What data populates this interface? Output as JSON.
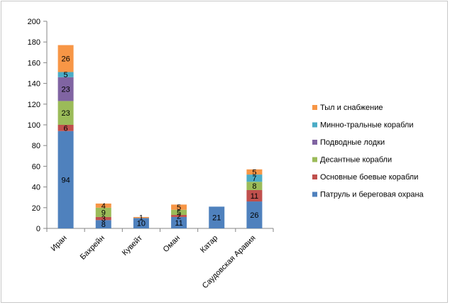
{
  "chart_data": {
    "type": "bar",
    "stacked": true,
    "title": "",
    "xlabel": "",
    "ylabel": "",
    "ylim": [
      0,
      200
    ],
    "y_ticks": [
      0,
      20,
      40,
      60,
      80,
      100,
      120,
      140,
      160,
      180,
      200
    ],
    "grid": false,
    "legend_position": "right",
    "categories": [
      "Иран",
      "Бахрейн",
      "Кувейт",
      "Оман",
      "Катар",
      "Саудовская Аравия"
    ],
    "series": [
      {
        "name": "Патруль и береговая охрана",
        "color": "#4F81BD",
        "values": [
          94,
          8,
          10,
          11,
          21,
          26
        ]
      },
      {
        "name": "Основные боевые корабли",
        "color": "#C0504D",
        "values": [
          6,
          3,
          0,
          2,
          0,
          11
        ]
      },
      {
        "name": "Десантные корабли",
        "color": "#9BBB59",
        "values": [
          23,
          9,
          0,
          5,
          0,
          8
        ]
      },
      {
        "name": "Подводные лодки",
        "color": "#8064A2",
        "values": [
          23,
          0,
          0,
          0,
          0,
          0
        ]
      },
      {
        "name": "Минно-тральные корабли",
        "color": "#4BACC6",
        "values": [
          5,
          0,
          0,
          0,
          0,
          7
        ]
      },
      {
        "name": "Тыл и снабжение",
        "color": "#F79646",
        "values": [
          26,
          4,
          1,
          5,
          0,
          5
        ]
      }
    ]
  }
}
